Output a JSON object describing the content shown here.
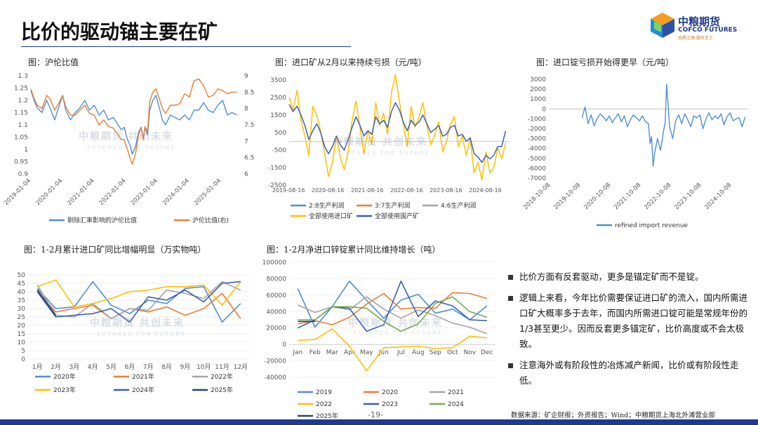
{
  "header": {
    "title": "比价的驱动锚主要在矿",
    "logo_cn": "中粮期货",
    "logo_en": "COFCO FUTURES",
    "logo_sub": "品质之源 服务至上"
  },
  "watermark": {
    "cn": "中粮期货 共创未来",
    "en": "·FUTURES FOR FUTURE·"
  },
  "page_number": "-19-",
  "source": "数据来源：矿企财报；外资报告；Wind；中粮期货上海北外滩营业部",
  "bullets": [
    "比价方面有反套驱动，更多是锚定矿而不是锭。",
    "逻辑上来看，今年比价需要保证进口矿的流入，国内所需进口矿大概率多于去年，而国内所需进口锭可能是常规年份的1/3甚至更少。因而反套更多锚定矿，比价高度或不会太极致。",
    "注意海外或有阶段性的冶炼减产新闻，比价或有阶段性走低。"
  ],
  "colors": {
    "blue": "#4d8fd6",
    "orange": "#ed7d31",
    "gray": "#a5a5a5",
    "yellow": "#ffc000",
    "darkblue": "#3a5fb5",
    "green": "#70ad47",
    "navy": "#264478"
  },
  "chart_data": [
    {
      "id": "c1",
      "type": "line",
      "title": "图：沪伦比值",
      "x_ticks": [
        "2019-01-04",
        "2020-01-04",
        "2021-01-04",
        "2022-01-04",
        "2023-01-04",
        "2024-01-04",
        "2025-01-04"
      ],
      "x_range": [
        2019.0,
        2025.6
      ],
      "ylim": [
        0.9,
        1.3
      ],
      "y_ticks": [
        "0.9",
        "0.95",
        "1",
        "1.05",
        "1.1",
        "1.15",
        "1.2",
        "1.25",
        "1.3"
      ],
      "y2lim": [
        6,
        9
      ],
      "y2_ticks": [
        "6",
        "6.5",
        "7",
        "7.5",
        "8",
        "8.5",
        "9"
      ],
      "series": [
        {
          "name": "剔除汇率影响的沪伦比值",
          "axis": "left",
          "color": "#4d8fd6",
          "x": [
            2019.0,
            2019.1,
            2019.2,
            2019.35,
            2019.5,
            2019.6,
            2019.75,
            2019.9,
            2020.0,
            2020.1,
            2020.25,
            2020.4,
            2020.55,
            2020.7,
            2020.85,
            2021.0,
            2021.15,
            2021.3,
            2021.45,
            2021.6,
            2021.75,
            2021.85,
            2021.95,
            2022.0,
            2022.05,
            2022.12,
            2022.2,
            2022.3,
            2022.4,
            2022.48,
            2022.55,
            2022.6,
            2022.68,
            2022.75,
            2022.85,
            2022.95,
            2023.05,
            2023.15,
            2023.25,
            2023.4,
            2023.55,
            2023.7,
            2023.85,
            2024.0,
            2024.15,
            2024.3,
            2024.45,
            2024.6,
            2024.75,
            2024.9,
            2025.05,
            2025.2,
            2025.35,
            2025.5
          ],
          "y": [
            1.24,
            1.2,
            1.17,
            1.15,
            1.2,
            1.17,
            1.12,
            1.18,
            1.22,
            1.16,
            1.12,
            1.15,
            1.17,
            1.2,
            1.16,
            1.18,
            1.14,
            1.16,
            1.12,
            1.13,
            1.1,
            1.08,
            1.09,
            1.06,
            1.04,
            1.02,
            0.98,
            1.01,
            1.07,
            1.09,
            1.04,
            1.09,
            1.06,
            1.16,
            1.2,
            1.22,
            1.17,
            1.12,
            1.1,
            1.14,
            1.13,
            1.12,
            1.14,
            1.12,
            1.16,
            1.16,
            1.19,
            1.16,
            1.15,
            1.18,
            1.2,
            1.14,
            1.15,
            1.14
          ]
        },
        {
          "name": "沪伦比值(右)",
          "axis": "right",
          "color": "#ed7d31",
          "x": [
            2019.0,
            2019.1,
            2019.2,
            2019.35,
            2019.5,
            2019.6,
            2019.75,
            2019.9,
            2020.0,
            2020.1,
            2020.25,
            2020.4,
            2020.55,
            2020.7,
            2020.85,
            2021.0,
            2021.15,
            2021.3,
            2021.45,
            2021.6,
            2021.75,
            2021.85,
            2021.95,
            2022.0,
            2022.05,
            2022.12,
            2022.2,
            2022.3,
            2022.4,
            2022.48,
            2022.55,
            2022.6,
            2022.68,
            2022.75,
            2022.85,
            2022.95,
            2023.05,
            2023.15,
            2023.25,
            2023.4,
            2023.55,
            2023.7,
            2023.85,
            2024.0,
            2024.15,
            2024.3,
            2024.45,
            2024.6,
            2024.75,
            2024.9,
            2025.05,
            2025.2,
            2025.35,
            2025.5
          ],
          "y": [
            8.6,
            8.3,
            8.1,
            8.0,
            8.4,
            8.3,
            7.95,
            8.2,
            8.4,
            8.05,
            7.8,
            7.8,
            7.95,
            8.1,
            7.85,
            7.8,
            7.5,
            7.65,
            7.45,
            7.4,
            7.2,
            7.05,
            7.05,
            6.85,
            6.75,
            6.5,
            6.3,
            6.6,
            7.2,
            7.4,
            7.05,
            7.45,
            7.3,
            8.2,
            8.5,
            8.6,
            8.3,
            8.0,
            7.85,
            8.1,
            8.1,
            8.15,
            8.45,
            8.35,
            8.85,
            8.9,
            8.7,
            8.35,
            8.4,
            8.6,
            8.55,
            8.45,
            8.5,
            8.5
          ]
        }
      ]
    },
    {
      "id": "c2",
      "type": "line",
      "title": "图：进口矿从2月以来持续亏损（元/吨）",
      "x_ticks": [
        "2019-08-16",
        "2020-08-16",
        "2021-08-16",
        "2022-08-16",
        "2023-08-16",
        "2024-08-16"
      ],
      "x_range": [
        2019.6,
        2025.2
      ],
      "ylim": [
        -2500,
        3500
      ],
      "y_ticks": [
        "-2500",
        "-1500",
        "-500",
        "500",
        "1500",
        "2500",
        "3500"
      ],
      "series": [
        {
          "name": "2:8生产利润",
          "color": "#4d8fd6",
          "x": [],
          "y": []
        },
        {
          "name": "3:7生产利润",
          "color": "#ed7d31",
          "x": [],
          "y": []
        },
        {
          "name": "4:6生产利润",
          "color": "#a5a5a5",
          "x": [],
          "y": []
        },
        {
          "name": "全部使用进口矿",
          "color": "#ffc000",
          "x": [
            2019.6,
            2019.7,
            2019.8,
            2019.9,
            2020.0,
            2020.1,
            2020.2,
            2020.3,
            2020.4,
            2020.5,
            2020.6,
            2020.7,
            2020.8,
            2020.9,
            2021.0,
            2021.1,
            2021.2,
            2021.3,
            2021.4,
            2021.5,
            2021.6,
            2021.7,
            2021.8,
            2021.9,
            2022.0,
            2022.1,
            2022.2,
            2022.3,
            2022.4,
            2022.5,
            2022.6,
            2022.7,
            2022.8,
            2022.9,
            2023.0,
            2023.1,
            2023.2,
            2023.3,
            2023.4,
            2023.5,
            2023.6,
            2023.7,
            2023.8,
            2023.9,
            2024.0,
            2024.1,
            2024.2,
            2024.3,
            2024.4,
            2024.5,
            2024.6,
            2024.7,
            2024.8,
            2024.9,
            2025.0,
            2025.1
          ],
          "y": [
            2500,
            1800,
            2900,
            1200,
            300,
            -800,
            2000,
            1500,
            600,
            -700,
            -2000,
            -1200,
            300,
            -900,
            -1600,
            -600,
            1200,
            2300,
            800,
            -700,
            600,
            -200,
            2200,
            900,
            1600,
            400,
            2800,
            3800,
            2300,
            1000,
            -300,
            2000,
            800,
            1400,
            2200,
            900,
            -200,
            400,
            1100,
            -600,
            0,
            1000,
            1400,
            -300,
            300,
            -800,
            200,
            -1800,
            -1200,
            -2200,
            -600,
            -1800,
            -1500,
            -400,
            -1000,
            -100
          ]
        },
        {
          "name": "全部使用国产矿",
          "color": "#3a5fb5",
          "x": [
            2019.6,
            2019.7,
            2019.8,
            2019.9,
            2020.0,
            2020.1,
            2020.2,
            2020.3,
            2020.4,
            2020.5,
            2020.6,
            2020.7,
            2020.8,
            2020.9,
            2021.0,
            2021.1,
            2021.2,
            2021.3,
            2021.4,
            2021.5,
            2021.6,
            2021.7,
            2021.8,
            2021.9,
            2022.0,
            2022.1,
            2022.2,
            2022.3,
            2022.4,
            2022.5,
            2022.6,
            2022.7,
            2022.8,
            2022.9,
            2023.0,
            2023.1,
            2023.2,
            2023.3,
            2023.4,
            2023.5,
            2023.6,
            2023.7,
            2023.8,
            2023.9,
            2024.0,
            2024.1,
            2024.2,
            2024.3,
            2024.4,
            2024.5,
            2024.6,
            2024.7,
            2024.8,
            2024.9,
            2025.0,
            2025.1
          ],
          "y": [
            2100,
            1700,
            2000,
            1500,
            900,
            100,
            600,
            1000,
            500,
            -300,
            -700,
            -300,
            300,
            -200,
            -500,
            100,
            800,
            1400,
            900,
            300,
            600,
            400,
            1400,
            1000,
            1200,
            800,
            1700,
            2200,
            1800,
            1100,
            600,
            1200,
            900,
            1100,
            1500,
            1000,
            500,
            700,
            900,
            300,
            400,
            800,
            900,
            300,
            400,
            0,
            200,
            -700,
            -900,
            -1200,
            -800,
            -1000,
            -800,
            -300,
            -300,
            600
          ]
        }
      ]
    },
    {
      "id": "c3",
      "type": "line",
      "title": "图：进口锭亏损开始得更早（元/吨）",
      "x_ticks": [
        "2018-10-08",
        "2019-10-08",
        "2020-10-08",
        "2021-10-08",
        "2022-10-08",
        "2023-10-08",
        "2024-10-08"
      ],
      "x_range": [
        2018.7,
        2025.3
      ],
      "ylim": [
        -7000,
        3000
      ],
      "y_ticks": [
        "-7000",
        "-6000",
        "-5000",
        "-4000",
        "-3000",
        "-2000",
        "-1000",
        "0",
        "1000",
        "2000",
        "3000"
      ],
      "series": [
        {
          "name": "refined import revenue",
          "color": "#4d8fd6",
          "x": [
            2019.8,
            2019.9,
            2020.0,
            2020.1,
            2020.2,
            2020.3,
            2020.4,
            2020.5,
            2020.6,
            2020.7,
            2020.8,
            2020.9,
            2021.0,
            2021.1,
            2021.2,
            2021.3,
            2021.4,
            2021.5,
            2021.6,
            2021.7,
            2021.8,
            2021.9,
            2022.0,
            2022.05,
            2022.1,
            2022.15,
            2022.2,
            2022.3,
            2022.4,
            2022.5,
            2022.55,
            2022.6,
            2022.7,
            2022.8,
            2022.9,
            2023.0,
            2023.1,
            2023.2,
            2023.3,
            2023.4,
            2023.5,
            2023.6,
            2023.7,
            2023.8,
            2023.9,
            2024.0,
            2024.1,
            2024.2,
            2024.3,
            2024.4,
            2024.5,
            2024.6,
            2024.7,
            2024.8,
            2024.9,
            2025.0,
            2025.1,
            2025.2
          ],
          "y": [
            -900,
            200,
            -1500,
            -600,
            -1700,
            -1000,
            -500,
            -800,
            -1200,
            -700,
            -1400,
            -900,
            -500,
            -1300,
            -700,
            -1800,
            -1100,
            -600,
            -900,
            -1200,
            -700,
            -1300,
            -1500,
            -3500,
            -2800,
            -5800,
            -4500,
            -3000,
            -4200,
            -2200,
            -1400,
            2500,
            -1800,
            -3000,
            -1200,
            -600,
            -1500,
            -500,
            -1100,
            -1800,
            -700,
            -900,
            -600,
            -2000,
            -1000,
            -400,
            -1100,
            -700,
            -1000,
            -500,
            -1600,
            -800,
            -400,
            -1200,
            -1000,
            -900,
            -1800,
            -800
          ]
        }
      ]
    },
    {
      "id": "c4",
      "type": "line",
      "title": "图：1-2月累计进口矿同比增幅明显（万实物吨）",
      "categories": [
        "1月",
        "2月",
        "3月",
        "4月",
        "5月",
        "6月",
        "7月",
        "8月",
        "9月",
        "10月",
        "11月",
        "12月"
      ],
      "ylim": [
        0,
        50
      ],
      "y_ticks": [
        "0",
        "5",
        "10",
        "15",
        "20",
        "25",
        "30",
        "35",
        "40",
        "45",
        "50"
      ],
      "series": [
        {
          "name": "2020年",
          "color": "#4d8fd6",
          "values": [
            42,
            30,
            31,
            46,
            32,
            27,
            35,
            33,
            42,
            43,
            22,
            33
          ]
        },
        {
          "name": "2021年",
          "color": "#ed7d31",
          "values": [
            41,
            28,
            30,
            32,
            24,
            30,
            28,
            31,
            26,
            30,
            39,
            24
          ]
        },
        {
          "name": "2022年",
          "color": "#a5a5a5",
          "values": [
            44,
            26,
            25,
            33,
            24,
            30,
            29,
            41,
            39,
            36,
            46,
            41
          ]
        },
        {
          "name": "2023年",
          "color": "#ffc000",
          "values": [
            43,
            47,
            31,
            33,
            36,
            40,
            41,
            43,
            43,
            44,
            32,
            46
          ]
        },
        {
          "name": "2024年",
          "color": "#3a5fb5",
          "values": [
            40,
            25,
            26,
            27,
            30,
            22,
            37,
            35,
            41,
            34,
            45,
            46
          ]
        },
        {
          "name": "2025年",
          "color": "#264478",
          "values": [
            41,
            26,
            null,
            null,
            null,
            null,
            null,
            null,
            null,
            null,
            null,
            null
          ]
        }
      ]
    },
    {
      "id": "c5",
      "type": "line",
      "title": "图：1-2月净进口锌锭累计同比维持增长（吨）",
      "categories": [
        "Jan",
        "Feb",
        "Mar",
        "Apr",
        "May",
        "Jun",
        "Jul",
        "Aug",
        "Sep",
        "Oct",
        "Nov",
        "Dec"
      ],
      "ylim": [
        -40000,
        100000
      ],
      "y_ticks": [
        "-40000",
        "-20000",
        "0",
        "20000",
        "40000",
        "60000",
        "80000",
        "100000"
      ],
      "series": [
        {
          "name": "2019",
          "color": "#4d8fd6",
          "values": [
            68000,
            21000,
            46000,
            77000,
            54000,
            32000,
            54000,
            61000,
            38000,
            43000,
            30000,
            47000
          ]
        },
        {
          "name": "2020",
          "color": "#ed7d31",
          "values": [
            25000,
            29000,
            24000,
            33000,
            49000,
            62000,
            43000,
            45000,
            44000,
            63000,
            62000,
            56000
          ]
        },
        {
          "name": "2021",
          "color": "#a5a5a5",
          "values": [
            48000,
            39000,
            46000,
            42000,
            58000,
            43000,
            32000,
            42000,
            35000,
            26000,
            21000,
            13000
          ]
        },
        {
          "name": "2022",
          "color": "#ffc000",
          "values": [
            5000,
            6000,
            19000,
            -2000,
            -32000,
            -4000,
            -3000,
            -2000,
            -5000,
            -4000,
            10000,
            8000
          ]
        },
        {
          "name": "2023",
          "color": "#3a5fb5",
          "values": [
            20000,
            30000,
            46000,
            44000,
            16000,
            24000,
            77000,
            34000,
            53000,
            47000,
            30000,
            29000
          ]
        },
        {
          "name": "2024",
          "color": "#70ad47",
          "values": [
            30000,
            30000,
            46000,
            46000,
            44000,
            28000,
            16000,
            25000,
            50000,
            58000,
            40000,
            33000
          ]
        },
        {
          "name": "2025年",
          "color": "#264478",
          "values": [
            28000,
            28000,
            null,
            null,
            null,
            null,
            null,
            null,
            null,
            null,
            null,
            null
          ]
        }
      ]
    }
  ]
}
